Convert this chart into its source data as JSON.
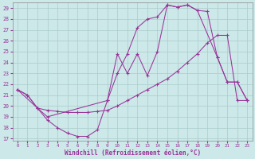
{
  "xlabel": "Windchill (Refroidissement éolien,°C)",
  "xlim": [
    -0.5,
    23.5
  ],
  "ylim": [
    16.8,
    29.5
  ],
  "yticks": [
    17,
    18,
    19,
    20,
    21,
    22,
    23,
    24,
    25,
    26,
    27,
    28,
    29
  ],
  "xticks": [
    0,
    1,
    2,
    3,
    4,
    5,
    6,
    7,
    8,
    9,
    10,
    11,
    12,
    13,
    14,
    15,
    16,
    17,
    18,
    19,
    20,
    21,
    22,
    23
  ],
  "bg_color": "#cce8e8",
  "grid_color": "#aacccc",
  "line_color": "#993399",
  "curve1_x": [
    0,
    1,
    2,
    3,
    4,
    5,
    6,
    7,
    8,
    9,
    10,
    11,
    12,
    13,
    14,
    15,
    16,
    17,
    18,
    19,
    20,
    21,
    22,
    23
  ],
  "curve1_y": [
    21.5,
    21.0,
    19.8,
    18.7,
    18.0,
    17.5,
    17.2,
    17.2,
    17.8,
    20.5,
    23.0,
    24.8,
    27.2,
    28.0,
    28.2,
    29.3,
    29.1,
    29.3,
    28.8,
    28.7,
    24.5,
    22.2,
    22.2,
    20.5
  ],
  "curve2_x": [
    0,
    1,
    2,
    3,
    4,
    5,
    6,
    7,
    8,
    9,
    10,
    11,
    12,
    13,
    14,
    15,
    16,
    17,
    18,
    19,
    20,
    21,
    22,
    23
  ],
  "curve2_y": [
    21.5,
    21.0,
    19.8,
    19.6,
    19.5,
    19.4,
    19.4,
    19.4,
    19.5,
    19.6,
    20.0,
    20.5,
    21.0,
    21.5,
    22.0,
    22.5,
    23.2,
    24.0,
    24.8,
    25.8,
    26.5,
    26.5,
    20.5,
    20.5
  ],
  "curve3_x": [
    0,
    2,
    3,
    9,
    10,
    11,
    12,
    13,
    14,
    15,
    16,
    17,
    18,
    20,
    21,
    22,
    23
  ],
  "curve3_y": [
    21.5,
    19.8,
    19.0,
    20.5,
    24.8,
    23.0,
    24.8,
    22.8,
    25.0,
    29.3,
    29.1,
    29.3,
    28.8,
    24.5,
    22.2,
    22.2,
    20.5
  ]
}
